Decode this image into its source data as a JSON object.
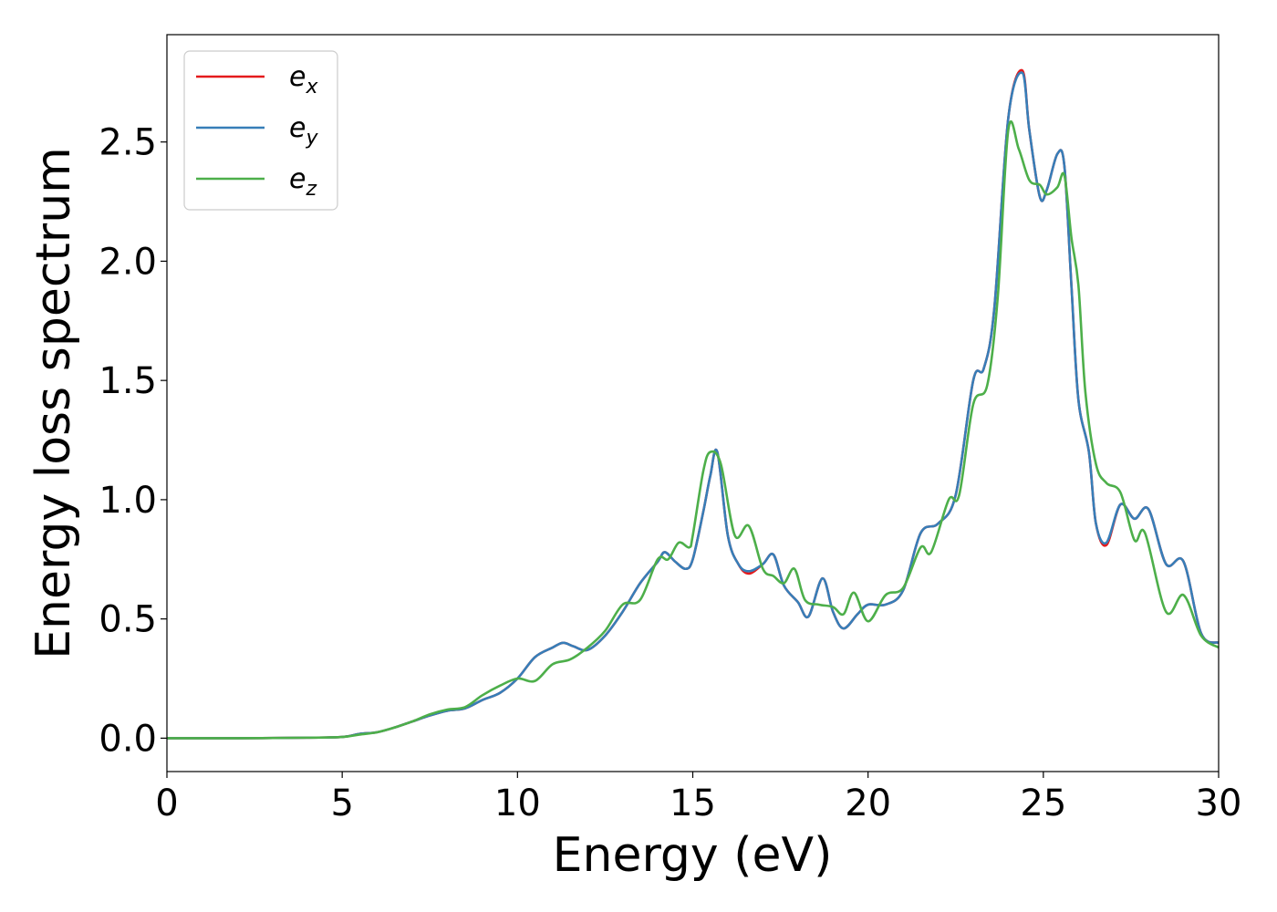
{
  "chart_data": {
    "type": "line",
    "title": "",
    "xlabel": "Energy (eV)",
    "ylabel": "Energy loss spectrum",
    "xlim": [
      0,
      30
    ],
    "ylim": [
      -0.14,
      2.95
    ],
    "xticks": [
      0,
      5,
      10,
      15,
      20,
      25,
      30
    ],
    "xtick_labels": [
      "0",
      "5",
      "10",
      "15",
      "20",
      "25",
      "30"
    ],
    "yticks": [
      0.0,
      0.5,
      1.0,
      1.5,
      2.0,
      2.5
    ],
    "ytick_labels": [
      "0.0",
      "0.5",
      "1.0",
      "1.5",
      "2.0",
      "2.5"
    ],
    "grid": false,
    "legend_position": "top-left",
    "series": [
      {
        "name": "e_x",
        "label_base": "e",
        "label_sub": "x",
        "color": "#e41a1c",
        "points": [
          [
            0,
            0.0
          ],
          [
            2,
            0.0
          ],
          [
            4,
            0.002
          ],
          [
            5,
            0.005
          ],
          [
            5.5,
            0.018
          ],
          [
            6,
            0.025
          ],
          [
            6.5,
            0.045
          ],
          [
            7,
            0.07
          ],
          [
            7.5,
            0.095
          ],
          [
            8,
            0.115
          ],
          [
            8.5,
            0.125
          ],
          [
            9,
            0.16
          ],
          [
            9.5,
            0.19
          ],
          [
            10,
            0.25
          ],
          [
            10.5,
            0.34
          ],
          [
            11,
            0.38
          ],
          [
            11.3,
            0.4
          ],
          [
            11.6,
            0.385
          ],
          [
            12,
            0.37
          ],
          [
            12.5,
            0.43
          ],
          [
            13,
            0.53
          ],
          [
            13.5,
            0.65
          ],
          [
            14,
            0.74
          ],
          [
            14.2,
            0.78
          ],
          [
            14.5,
            0.74
          ],
          [
            14.8,
            0.71
          ],
          [
            15,
            0.75
          ],
          [
            15.3,
            0.95
          ],
          [
            15.5,
            1.1
          ],
          [
            15.7,
            1.2
          ],
          [
            16,
            0.85
          ],
          [
            16.3,
            0.73
          ],
          [
            16.6,
            0.69
          ],
          [
            17,
            0.73
          ],
          [
            17.3,
            0.77
          ],
          [
            17.6,
            0.64
          ],
          [
            18,
            0.57
          ],
          [
            18.3,
            0.51
          ],
          [
            18.7,
            0.67
          ],
          [
            19,
            0.53
          ],
          [
            19.3,
            0.46
          ],
          [
            19.7,
            0.52
          ],
          [
            20,
            0.56
          ],
          [
            20.5,
            0.56
          ],
          [
            21,
            0.62
          ],
          [
            21.5,
            0.86
          ],
          [
            22,
            0.9
          ],
          [
            22.5,
            1.02
          ],
          [
            23,
            1.5
          ],
          [
            23.3,
            1.55
          ],
          [
            23.6,
            1.8
          ],
          [
            24,
            2.6
          ],
          [
            24.4,
            2.8
          ],
          [
            24.6,
            2.55
          ],
          [
            24.9,
            2.27
          ],
          [
            25.1,
            2.3
          ],
          [
            25.4,
            2.45
          ],
          [
            25.6,
            2.4
          ],
          [
            25.8,
            1.9
          ],
          [
            26,
            1.42
          ],
          [
            26.3,
            1.2
          ],
          [
            26.5,
            0.9
          ],
          [
            26.8,
            0.81
          ],
          [
            27.2,
            0.98
          ],
          [
            27.6,
            0.92
          ],
          [
            28,
            0.96
          ],
          [
            28.5,
            0.73
          ],
          [
            29,
            0.74
          ],
          [
            29.5,
            0.44
          ],
          [
            30,
            0.4
          ]
        ]
      },
      {
        "name": "e_y",
        "label_base": "e",
        "label_sub": "y",
        "color": "#377eb8",
        "points": [
          [
            0,
            0.0
          ],
          [
            2,
            0.0
          ],
          [
            4,
            0.002
          ],
          [
            5,
            0.005
          ],
          [
            5.5,
            0.018
          ],
          [
            6,
            0.025
          ],
          [
            6.5,
            0.045
          ],
          [
            7,
            0.07
          ],
          [
            7.5,
            0.095
          ],
          [
            8,
            0.115
          ],
          [
            8.5,
            0.125
          ],
          [
            9,
            0.16
          ],
          [
            9.5,
            0.19
          ],
          [
            10,
            0.25
          ],
          [
            10.5,
            0.34
          ],
          [
            11,
            0.38
          ],
          [
            11.3,
            0.4
          ],
          [
            11.6,
            0.385
          ],
          [
            12,
            0.37
          ],
          [
            12.5,
            0.43
          ],
          [
            13,
            0.53
          ],
          [
            13.5,
            0.65
          ],
          [
            14,
            0.74
          ],
          [
            14.2,
            0.78
          ],
          [
            14.5,
            0.74
          ],
          [
            14.8,
            0.71
          ],
          [
            15,
            0.75
          ],
          [
            15.3,
            0.95
          ],
          [
            15.5,
            1.1
          ],
          [
            15.7,
            1.2
          ],
          [
            16,
            0.85
          ],
          [
            16.3,
            0.73
          ],
          [
            16.6,
            0.7
          ],
          [
            17,
            0.73
          ],
          [
            17.3,
            0.77
          ],
          [
            17.6,
            0.64
          ],
          [
            18,
            0.57
          ],
          [
            18.3,
            0.51
          ],
          [
            18.7,
            0.67
          ],
          [
            19,
            0.53
          ],
          [
            19.3,
            0.46
          ],
          [
            19.7,
            0.52
          ],
          [
            20,
            0.56
          ],
          [
            20.5,
            0.56
          ],
          [
            21,
            0.62
          ],
          [
            21.5,
            0.86
          ],
          [
            22,
            0.9
          ],
          [
            22.5,
            1.02
          ],
          [
            23,
            1.5
          ],
          [
            23.3,
            1.55
          ],
          [
            23.6,
            1.8
          ],
          [
            24,
            2.6
          ],
          [
            24.4,
            2.79
          ],
          [
            24.6,
            2.55
          ],
          [
            24.9,
            2.27
          ],
          [
            25.1,
            2.3
          ],
          [
            25.4,
            2.45
          ],
          [
            25.6,
            2.4
          ],
          [
            25.8,
            1.9
          ],
          [
            26,
            1.42
          ],
          [
            26.3,
            1.2
          ],
          [
            26.5,
            0.9
          ],
          [
            26.8,
            0.82
          ],
          [
            27.2,
            0.98
          ],
          [
            27.6,
            0.92
          ],
          [
            28,
            0.96
          ],
          [
            28.5,
            0.73
          ],
          [
            29,
            0.74
          ],
          [
            29.5,
            0.44
          ],
          [
            30,
            0.4
          ]
        ]
      },
      {
        "name": "e_z",
        "label_base": "e",
        "label_sub": "z",
        "color": "#4daf4a",
        "points": [
          [
            0,
            0.0
          ],
          [
            2,
            0.0
          ],
          [
            4,
            0.002
          ],
          [
            5,
            0.005
          ],
          [
            5.5,
            0.015
          ],
          [
            6,
            0.025
          ],
          [
            6.5,
            0.045
          ],
          [
            7,
            0.07
          ],
          [
            7.5,
            0.1
          ],
          [
            8,
            0.12
          ],
          [
            8.5,
            0.13
          ],
          [
            9,
            0.18
          ],
          [
            9.5,
            0.22
          ],
          [
            10,
            0.25
          ],
          [
            10.5,
            0.24
          ],
          [
            11,
            0.31
          ],
          [
            11.5,
            0.33
          ],
          [
            12,
            0.38
          ],
          [
            12.5,
            0.45
          ],
          [
            13,
            0.56
          ],
          [
            13.5,
            0.58
          ],
          [
            14,
            0.75
          ],
          [
            14.3,
            0.75
          ],
          [
            14.6,
            0.82
          ],
          [
            14.9,
            0.8
          ],
          [
            15,
            0.85
          ],
          [
            15.3,
            1.12
          ],
          [
            15.5,
            1.2
          ],
          [
            15.8,
            1.15
          ],
          [
            16.2,
            0.85
          ],
          [
            16.6,
            0.89
          ],
          [
            17,
            0.71
          ],
          [
            17.3,
            0.68
          ],
          [
            17.6,
            0.65
          ],
          [
            17.9,
            0.71
          ],
          [
            18.2,
            0.58
          ],
          [
            18.6,
            0.56
          ],
          [
            19,
            0.55
          ],
          [
            19.3,
            0.52
          ],
          [
            19.6,
            0.61
          ],
          [
            20,
            0.49
          ],
          [
            20.5,
            0.6
          ],
          [
            21,
            0.63
          ],
          [
            21.5,
            0.8
          ],
          [
            21.8,
            0.78
          ],
          [
            22.3,
            1.0
          ],
          [
            22.6,
            1.02
          ],
          [
            23,
            1.4
          ],
          [
            23.4,
            1.48
          ],
          [
            23.7,
            1.85
          ],
          [
            24,
            2.55
          ],
          [
            24.3,
            2.47
          ],
          [
            24.6,
            2.34
          ],
          [
            24.9,
            2.32
          ],
          [
            25.1,
            2.28
          ],
          [
            25.4,
            2.31
          ],
          [
            25.6,
            2.36
          ],
          [
            25.8,
            2.1
          ],
          [
            26,
            1.9
          ],
          [
            26.2,
            1.45
          ],
          [
            26.5,
            1.15
          ],
          [
            26.8,
            1.07
          ],
          [
            27.2,
            1.03
          ],
          [
            27.6,
            0.83
          ],
          [
            27.9,
            0.86
          ],
          [
            28.5,
            0.53
          ],
          [
            29,
            0.6
          ],
          [
            29.5,
            0.43
          ],
          [
            30,
            0.38
          ]
        ]
      }
    ]
  }
}
